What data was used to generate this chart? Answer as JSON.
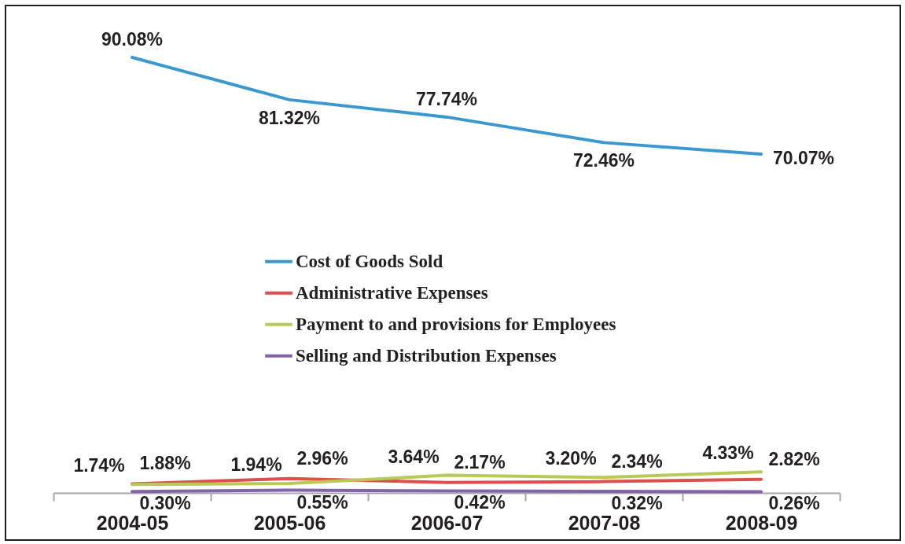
{
  "chart_data": {
    "type": "line",
    "categories": [
      "2004-05",
      "2005-06",
      "2006-07",
      "2007-08",
      "2008-09"
    ],
    "ylim": [
      0,
      100
    ],
    "tick_labels": "x",
    "legend": "center",
    "series": [
      {
        "name": "Cost of Goods Sold",
        "color": "#3a98d0",
        "values": [
          90.08,
          81.32,
          77.74,
          72.46,
          70.07
        ],
        "value_labels": [
          "90.08%",
          "81.32%",
          "77.74%",
          "72.46%",
          "70.07%"
        ]
      },
      {
        "name": "Administrative Expenses",
        "color": "#dc4f4c",
        "values": [
          1.88,
          2.96,
          2.17,
          2.34,
          2.82
        ],
        "value_labels": [
          "1.88%",
          "2.96%",
          "2.17%",
          "2.34%",
          "2.82%"
        ]
      },
      {
        "name": "Payment to and provisions for Employees",
        "color": "#b7c956",
        "values": [
          1.74,
          1.94,
          3.64,
          3.2,
          4.33
        ],
        "value_labels": [
          "1.74%",
          "1.94%",
          "3.64%",
          "3.20%",
          "4.33%"
        ]
      },
      {
        "name": "Selling and Distribution Expenses",
        "color": "#8066a8",
        "values": [
          0.3,
          0.55,
          0.42,
          0.32,
          0.26
        ],
        "value_labels": [
          "0.30%",
          "0.55%",
          "0.42%",
          "0.32%",
          "0.26%"
        ]
      }
    ]
  }
}
